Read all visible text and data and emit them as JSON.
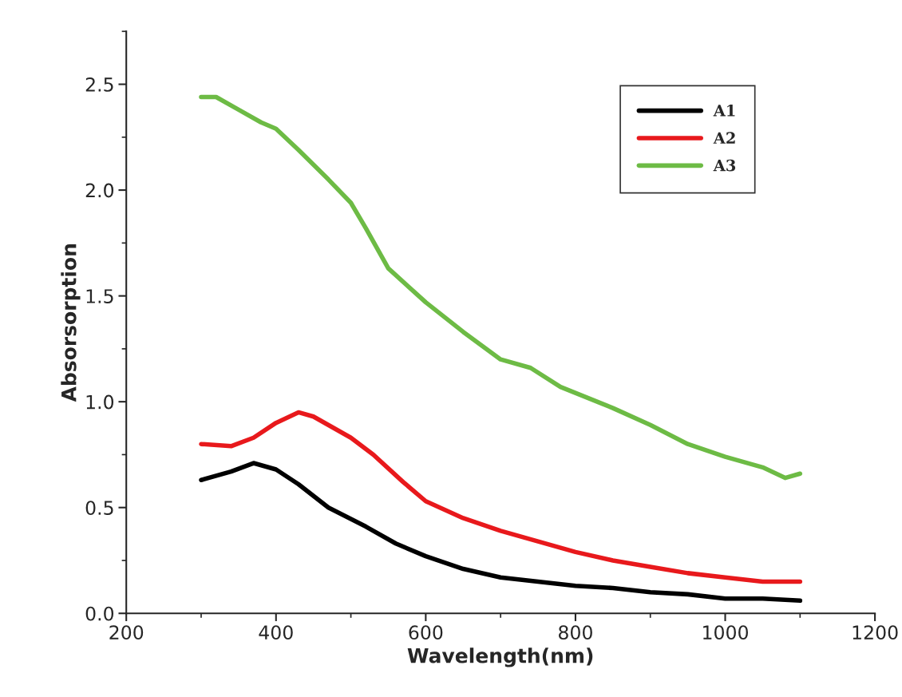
{
  "chart_data": {
    "type": "line",
    "xlabel": "Wavelength(nm)",
    "ylabel": "Absorsorption",
    "xlim": [
      200,
      1200
    ],
    "xticks": [
      200,
      400,
      600,
      800,
      1000,
      1200
    ],
    "ylim": [
      0,
      2.75
    ],
    "yticks": [
      {
        "value": 0,
        "label": "0.0"
      },
      0.5,
      {
        "value": 1,
        "label": "1.0"
      },
      1.5,
      {
        "value": 2,
        "label": "2.0"
      },
      2.5
    ],
    "grid": false,
    "legend": "top right",
    "marker": "none",
    "line_style": "solid",
    "series": [
      {
        "name": "A1",
        "color": "#000000",
        "x": [
          300,
          340,
          370,
          400,
          430,
          470,
          520,
          560,
          600,
          650,
          700,
          750,
          800,
          850,
          900,
          950,
          1000,
          1050,
          1100
        ],
        "values": [
          0.63,
          0.67,
          0.71,
          0.68,
          0.61,
          0.5,
          0.41,
          0.33,
          0.27,
          0.21,
          0.17,
          0.15,
          0.13,
          0.12,
          0.1,
          0.09,
          0.07,
          0.07,
          0.06
        ]
      },
      {
        "name": "A2",
        "color": "#e8191c",
        "x": [
          300,
          340,
          370,
          400,
          430,
          450,
          500,
          530,
          570,
          600,
          650,
          700,
          750,
          800,
          850,
          900,
          950,
          1000,
          1050,
          1100
        ],
        "values": [
          0.8,
          0.79,
          0.83,
          0.9,
          0.95,
          0.93,
          0.83,
          0.75,
          0.62,
          0.53,
          0.45,
          0.39,
          0.34,
          0.29,
          0.25,
          0.22,
          0.19,
          0.17,
          0.15,
          0.15
        ]
      },
      {
        "name": "A3",
        "color": "#6dbb45",
        "x": [
          300,
          320,
          350,
          380,
          400,
          430,
          470,
          500,
          520,
          550,
          600,
          650,
          700,
          740,
          780,
          850,
          900,
          950,
          1000,
          1050,
          1080,
          1100
        ],
        "values": [
          2.44,
          2.44,
          2.38,
          2.32,
          2.29,
          2.19,
          2.05,
          1.94,
          1.82,
          1.63,
          1.47,
          1.33,
          1.2,
          1.16,
          1.07,
          0.97,
          0.89,
          0.8,
          0.74,
          0.69,
          0.64,
          0.66
        ]
      }
    ]
  }
}
